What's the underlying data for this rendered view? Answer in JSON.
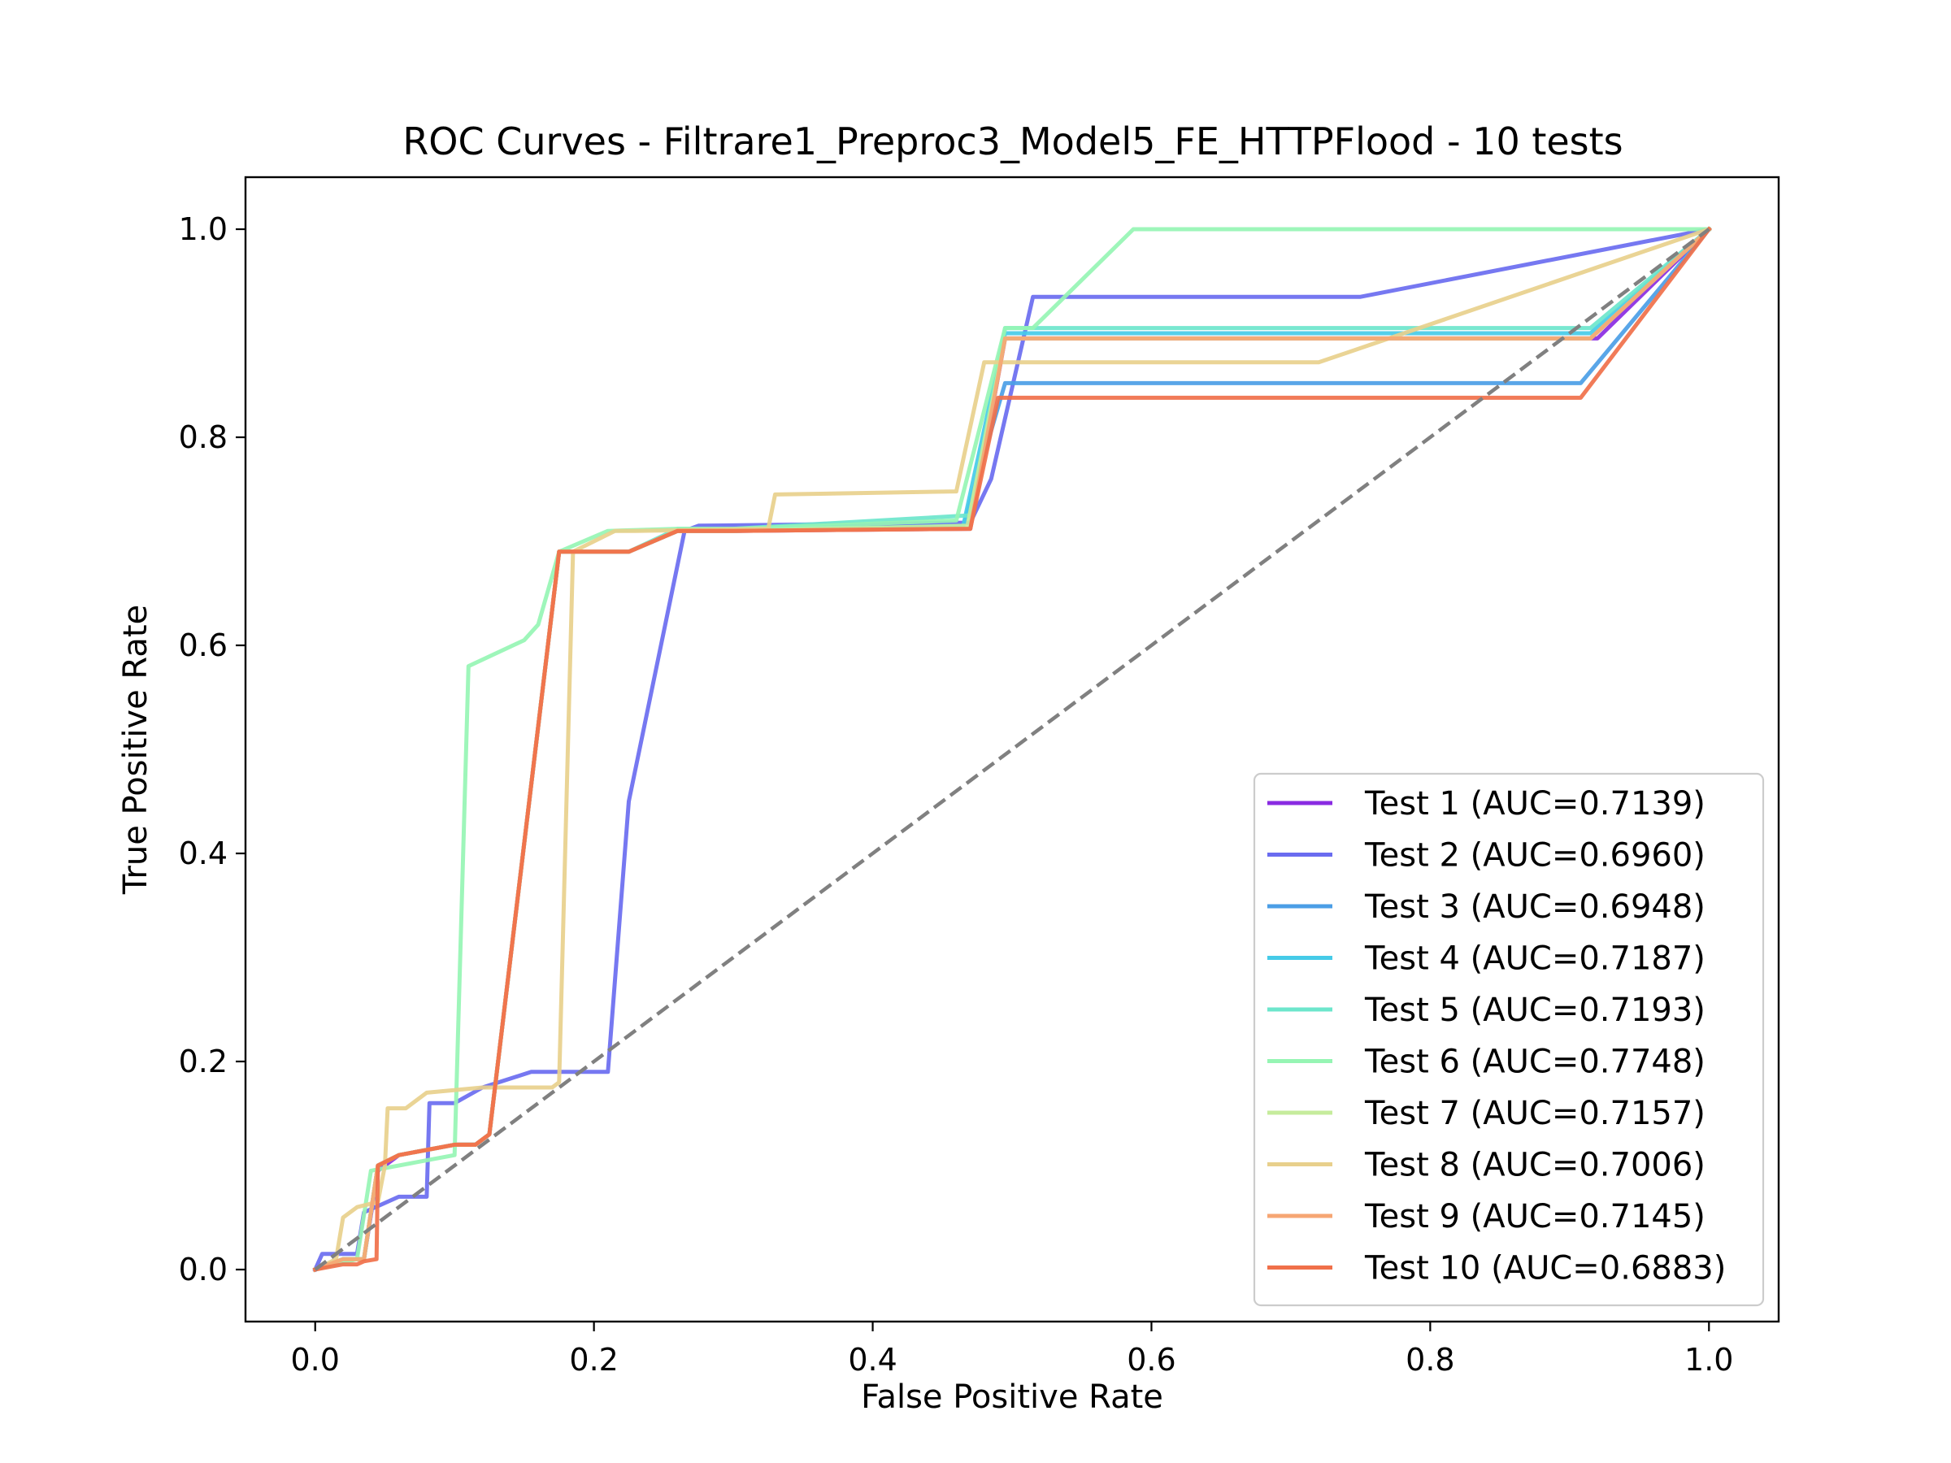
{
  "chart_data": {
    "type": "line",
    "title": "ROC Curves - Filtrare1_Preproc3_Model5_FE_HTTPFlood - 10 tests",
    "xlabel": "False Positive Rate",
    "ylabel": "True Positive Rate",
    "xlim": [
      -0.05,
      1.05
    ],
    "ylim": [
      -0.05,
      1.05
    ],
    "xticks": [
      0.0,
      0.2,
      0.4,
      0.6,
      0.8,
      1.0
    ],
    "yticks": [
      0.0,
      0.2,
      0.4,
      0.6,
      0.8,
      1.0
    ],
    "xtick_labels": [
      "0.0",
      "0.2",
      "0.4",
      "0.6",
      "0.8",
      "1.0"
    ],
    "ytick_labels": [
      "0.0",
      "0.2",
      "0.4",
      "0.6",
      "0.8",
      "1.0"
    ],
    "grid": false,
    "legend_position": "lower-right",
    "diagonal": {
      "x": [
        0,
        1
      ],
      "y": [
        0,
        1
      ],
      "color": "#808080",
      "style": "dashed"
    },
    "series": [
      {
        "name": "Test 1 (AUC=0.7139)",
        "color": "#8a2be2",
        "x": [
          0,
          0.02,
          0.03,
          0.035,
          0.045,
          0.06,
          0.1,
          0.115,
          0.125,
          0.175,
          0.21,
          0.225,
          0.26,
          0.3,
          0.47,
          0.495,
          0.92,
          1.0
        ],
        "y": [
          0,
          0.01,
          0.01,
          0.01,
          0.095,
          0.11,
          0.12,
          0.12,
          0.13,
          0.69,
          0.69,
          0.69,
          0.71,
          0.71,
          0.712,
          0.895,
          0.895,
          1.0
        ]
      },
      {
        "name": "Test 2 (AUC=0.6960)",
        "color": "#6a6cf0",
        "x": [
          0,
          0.005,
          0.03,
          0.035,
          0.06,
          0.08,
          0.082,
          0.1,
          0.12,
          0.155,
          0.21,
          0.225,
          0.265,
          0.275,
          0.47,
          0.485,
          0.515,
          0.75,
          1.0
        ],
        "y": [
          0,
          0.015,
          0.015,
          0.055,
          0.07,
          0.07,
          0.16,
          0.16,
          0.175,
          0.19,
          0.19,
          0.45,
          0.71,
          0.715,
          0.718,
          0.76,
          0.935,
          0.935,
          1.0
        ]
      },
      {
        "name": "Test 3 (AUC=0.6948)",
        "color": "#4b9ee6",
        "x": [
          0,
          0.02,
          0.03,
          0.035,
          0.045,
          0.06,
          0.1,
          0.115,
          0.125,
          0.175,
          0.21,
          0.225,
          0.26,
          0.3,
          0.465,
          0.495,
          0.908,
          1.0
        ],
        "y": [
          0,
          0.01,
          0.01,
          0.01,
          0.1,
          0.11,
          0.12,
          0.12,
          0.13,
          0.69,
          0.69,
          0.69,
          0.71,
          0.71,
          0.715,
          0.852,
          0.852,
          1.0
        ]
      },
      {
        "name": "Test 4 (AUC=0.7187)",
        "color": "#45cbe8",
        "x": [
          0,
          0.02,
          0.03,
          0.035,
          0.045,
          0.06,
          0.1,
          0.115,
          0.125,
          0.175,
          0.21,
          0.225,
          0.26,
          0.3,
          0.465,
          0.495,
          0.915,
          1.0
        ],
        "y": [
          0,
          0.01,
          0.01,
          0.01,
          0.1,
          0.11,
          0.12,
          0.12,
          0.13,
          0.69,
          0.69,
          0.69,
          0.71,
          0.71,
          0.715,
          0.9,
          0.9,
          1.0
        ]
      },
      {
        "name": "Test 5 (AUC=0.7193)",
        "color": "#6de6cc",
        "x": [
          0,
          0.02,
          0.03,
          0.035,
          0.045,
          0.06,
          0.1,
          0.115,
          0.125,
          0.175,
          0.21,
          0.225,
          0.26,
          0.3,
          0.47,
          0.495,
          0.915,
          1.0
        ],
        "y": [
          0,
          0.01,
          0.01,
          0.01,
          0.1,
          0.11,
          0.12,
          0.12,
          0.13,
          0.69,
          0.69,
          0.69,
          0.712,
          0.712,
          0.725,
          0.905,
          0.905,
          1.0
        ]
      },
      {
        "name": "Test 6 (AUC=0.7748)",
        "color": "#96f5b4",
        "x": [
          0,
          0.03,
          0.04,
          0.08,
          0.1,
          0.11,
          0.15,
          0.16,
          0.175,
          0.21,
          0.26,
          0.3,
          0.46,
          0.495,
          0.515,
          0.587,
          1.0
        ],
        "y": [
          0,
          0.01,
          0.095,
          0.105,
          0.11,
          0.58,
          0.605,
          0.62,
          0.69,
          0.71,
          0.712,
          0.712,
          0.72,
          0.905,
          0.905,
          1.0,
          1.0
        ]
      },
      {
        "name": "Test 7 (AUC=0.7157)",
        "color": "#c6ec9c",
        "x": [
          0,
          0.02,
          0.03,
          0.035,
          0.045,
          0.06,
          0.1,
          0.115,
          0.125,
          0.175,
          0.21,
          0.225,
          0.26,
          0.3,
          0.468,
          0.495,
          0.915,
          1.0
        ],
        "y": [
          0,
          0.01,
          0.01,
          0.01,
          0.1,
          0.11,
          0.12,
          0.12,
          0.13,
          0.69,
          0.69,
          0.69,
          0.71,
          0.71,
          0.715,
          0.895,
          0.895,
          1.0
        ]
      },
      {
        "name": "Test 8 (AUC=0.7006)",
        "color": "#e8d08c",
        "x": [
          0,
          0.015,
          0.02,
          0.03,
          0.045,
          0.05,
          0.052,
          0.065,
          0.08,
          0.12,
          0.17,
          0.175,
          0.185,
          0.215,
          0.23,
          0.325,
          0.33,
          0.46,
          0.48,
          0.72,
          1.0
        ],
        "y": [
          0,
          0.01,
          0.05,
          0.06,
          0.065,
          0.1,
          0.155,
          0.155,
          0.17,
          0.175,
          0.175,
          0.18,
          0.69,
          0.71,
          0.71,
          0.712,
          0.745,
          0.748,
          0.872,
          0.872,
          1.0
        ]
      },
      {
        "name": "Test 9 (AUC=0.7145)",
        "color": "#f6a673",
        "x": [
          0,
          0.02,
          0.03,
          0.035,
          0.045,
          0.06,
          0.1,
          0.115,
          0.125,
          0.175,
          0.21,
          0.225,
          0.26,
          0.3,
          0.47,
          0.495,
          0.915,
          1.0
        ],
        "y": [
          0,
          0.01,
          0.01,
          0.01,
          0.1,
          0.11,
          0.12,
          0.12,
          0.13,
          0.69,
          0.69,
          0.69,
          0.71,
          0.71,
          0.712,
          0.895,
          0.895,
          1.0
        ]
      },
      {
        "name": "Test 10 (AUC=0.6883)",
        "color": "#f0704a",
        "x": [
          0,
          0.02,
          0.03,
          0.035,
          0.044,
          0.045,
          0.06,
          0.1,
          0.115,
          0.125,
          0.175,
          0.21,
          0.225,
          0.26,
          0.3,
          0.47,
          0.49,
          0.908,
          1.0
        ],
        "y": [
          0,
          0.005,
          0.005,
          0.008,
          0.01,
          0.1,
          0.11,
          0.12,
          0.12,
          0.13,
          0.69,
          0.69,
          0.69,
          0.71,
          0.71,
          0.712,
          0.838,
          0.838,
          1.0
        ]
      }
    ]
  }
}
